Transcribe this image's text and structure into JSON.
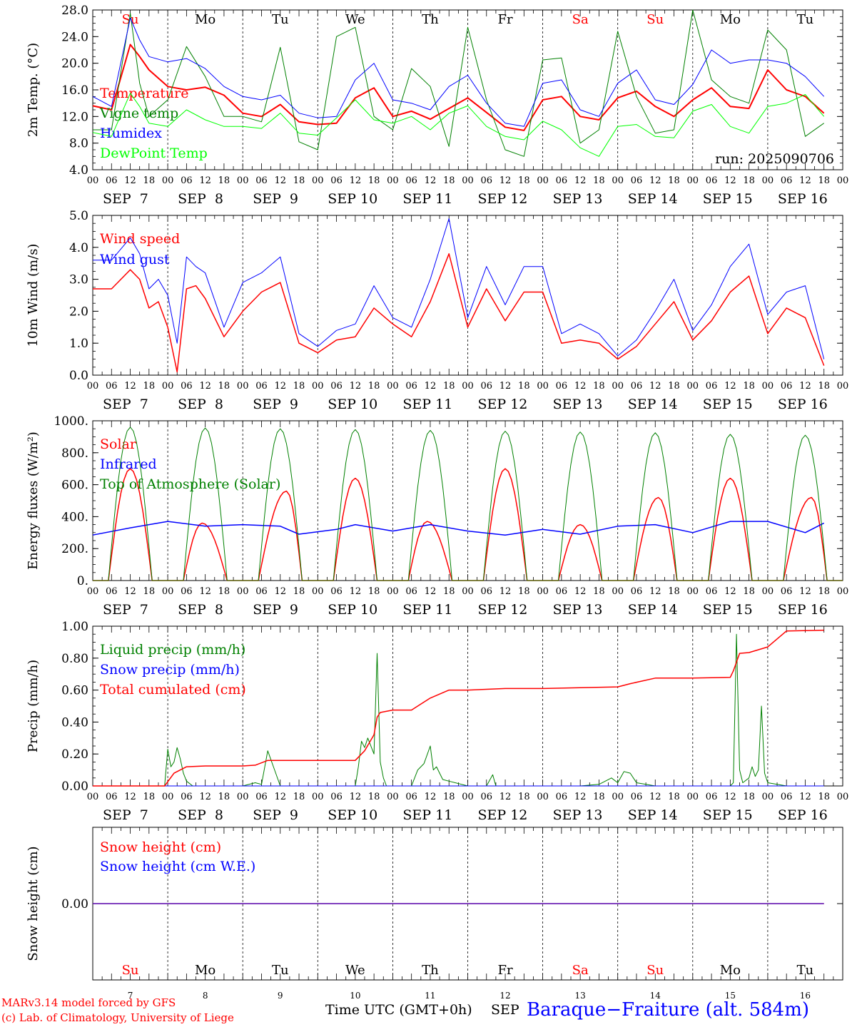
{
  "header": {},
  "x_axis": {
    "hour_labels": [
      "00",
      "06",
      "12",
      "18"
    ],
    "date_labels": [
      "SEP  7",
      "SEP  8",
      "SEP  9",
      "SEP 10",
      "SEP 11",
      "SEP 12",
      "SEP 13",
      "SEP 14",
      "SEP 15",
      "SEP 16"
    ],
    "day_names": [
      "Su",
      "Mo",
      "Tu",
      "We",
      "Th",
      "Fr",
      "Sa",
      "Su",
      "Mo",
      "Tu"
    ],
    "weekend_flags": [
      true,
      false,
      false,
      false,
      false,
      false,
      true,
      true,
      false,
      false
    ],
    "day_numbers": [
      "7",
      "8",
      "9",
      "10",
      "11",
      "12",
      "13",
      "14",
      "15",
      "16"
    ],
    "footer_axis_label": "Time UTC (GMT+0h)",
    "footer_month": "SEP"
  },
  "colors": {
    "red": "#ff0000",
    "darkgreen": "#008000",
    "blue": "#0000ff",
    "lightgreen": "#00ff00",
    "grid": "#000000"
  },
  "footer": {
    "model": "MARv3.14 model forced by GFS",
    "copyright": "(c) Lab. of Climatology, University of Liege",
    "station": "Baraque−Fraiture (alt. 584m)"
  },
  "chart_data": [
    {
      "type": "line",
      "ylabel": "2m Temp. (°C)",
      "ylim": [
        4.0,
        28.0
      ],
      "yticks": [
        4.0,
        8.0,
        12.0,
        16.0,
        20.0,
        24.0,
        28.0
      ],
      "ytick_labels": [
        "4.0",
        "8.0",
        "12.0",
        "16.0",
        "20.0",
        "24.0",
        "28.0"
      ],
      "annotation": "run: 2025090706",
      "x_unit": "hours since SEP 7 00 UTC",
      "series": [
        {
          "name": "Temperature",
          "color": "#ff0000",
          "width": 2,
          "x": [
            0,
            6,
            12,
            15,
            18,
            24,
            30,
            36,
            42,
            48,
            54,
            60,
            66,
            72,
            78,
            84,
            90,
            96,
            102,
            108,
            114,
            120,
            126,
            132,
            138,
            144,
            150,
            156,
            162,
            168,
            174,
            180,
            186,
            192,
            198,
            204,
            210,
            216,
            222,
            228,
            234
          ],
          "y": [
            13.6,
            13.0,
            22.8,
            21.0,
            19.0,
            16.5,
            16.0,
            16.4,
            15.2,
            12.5,
            12.0,
            13.8,
            11.2,
            10.8,
            11.0,
            14.8,
            16.3,
            12.0,
            12.8,
            11.6,
            13.2,
            14.8,
            12.6,
            10.4,
            9.9,
            14.5,
            15.0,
            12.0,
            11.5,
            14.8,
            15.8,
            13.5,
            12.0,
            14.5,
            16.3,
            13.5,
            13.2,
            19.0,
            16.0,
            15.0,
            12.5
          ]
        },
        {
          "name": "Vigne temp",
          "color": "#008000",
          "width": 1,
          "x": [
            0,
            6,
            12,
            15,
            18,
            24,
            30,
            36,
            42,
            48,
            54,
            60,
            66,
            72,
            78,
            84,
            90,
            96,
            102,
            108,
            114,
            120,
            126,
            132,
            138,
            144,
            150,
            156,
            162,
            168,
            174,
            180,
            186,
            192,
            198,
            204,
            210,
            216,
            222,
            228,
            234
          ],
          "y": [
            10.0,
            10.0,
            27.5,
            17.0,
            12.0,
            14.5,
            22.5,
            18.0,
            12.0,
            12.0,
            11.2,
            22.4,
            8.2,
            7.0,
            24.0,
            25.4,
            12.0,
            10.0,
            19.2,
            16.5,
            7.5,
            25.4,
            14.5,
            7.0,
            6.0,
            20.5,
            20.8,
            8.0,
            10.0,
            24.8,
            15.0,
            9.5,
            10.0,
            28.0,
            17.5,
            15.0,
            14.0,
            25.0,
            22.0,
            9.0,
            11.0
          ]
        },
        {
          "name": "Humidex",
          "color": "#0000ff",
          "width": 1,
          "x": [
            0,
            6,
            12,
            15,
            18,
            24,
            30,
            36,
            42,
            48,
            54,
            60,
            66,
            72,
            78,
            84,
            90,
            96,
            102,
            108,
            114,
            120,
            126,
            132,
            138,
            144,
            150,
            156,
            162,
            168,
            174,
            180,
            186,
            192,
            198,
            204,
            210,
            216,
            222,
            228,
            234
          ],
          "y": [
            15.0,
            13.5,
            26.8,
            23.5,
            21.0,
            20.2,
            20.7,
            19.2,
            16.5,
            15.0,
            14.5,
            15.2,
            12.5,
            11.8,
            12.0,
            17.5,
            20.0,
            14.5,
            14.0,
            13.0,
            16.5,
            18.2,
            14.0,
            11.0,
            10.5,
            17.0,
            17.5,
            13.0,
            12.0,
            17.0,
            19.0,
            14.5,
            13.8,
            16.8,
            22.0,
            20.0,
            20.5,
            20.5,
            20.0,
            18.0,
            15.0
          ]
        },
        {
          "name": "DewPoint Temp",
          "color": "#00ff00",
          "width": 1,
          "x": [
            0,
            6,
            12,
            15,
            18,
            24,
            30,
            36,
            42,
            48,
            54,
            60,
            66,
            72,
            78,
            84,
            90,
            96,
            102,
            108,
            114,
            120,
            126,
            132,
            138,
            144,
            150,
            156,
            162,
            168,
            174,
            180,
            186,
            192,
            198,
            204,
            210,
            216,
            222,
            228,
            234
          ],
          "y": [
            9.6,
            9.0,
            15.5,
            13.5,
            11.0,
            10.5,
            13.0,
            11.5,
            10.5,
            10.5,
            10.2,
            12.5,
            9.5,
            9.2,
            11.8,
            14.5,
            11.5,
            11.0,
            12.0,
            10.0,
            12.5,
            13.6,
            10.5,
            9.0,
            8.5,
            11.3,
            10.0,
            7.3,
            6.0,
            10.5,
            10.8,
            9.0,
            8.8,
            12.8,
            13.8,
            10.5,
            9.5,
            13.5,
            14.0,
            15.3,
            12.0
          ]
        }
      ]
    },
    {
      "type": "line",
      "ylabel": "10m Wind (m/s)",
      "ylim": [
        0.0,
        5.0
      ],
      "yticks": [
        0.0,
        1.0,
        2.0,
        3.0,
        4.0,
        5.0
      ],
      "ytick_labels": [
        "0.0",
        "1.0",
        "2.0",
        "3.0",
        "4.0",
        "5.0"
      ],
      "x_unit": "hours since SEP 7 00 UTC",
      "series": [
        {
          "name": "Wind speed",
          "color": "#ff0000",
          "width": 1.5,
          "x": [
            0,
            6,
            12,
            15,
            18,
            21,
            24,
            27,
            30,
            33,
            36,
            42,
            48,
            54,
            60,
            66,
            72,
            78,
            84,
            90,
            96,
            102,
            108,
            114,
            120,
            126,
            132,
            138,
            144,
            150,
            156,
            162,
            168,
            174,
            180,
            186,
            192,
            198,
            204,
            210,
            216,
            222,
            228,
            234
          ],
          "y": [
            2.7,
            2.7,
            3.3,
            3.0,
            2.1,
            2.3,
            1.5,
            0.1,
            2.7,
            2.8,
            2.4,
            1.2,
            2.0,
            2.6,
            2.9,
            1.0,
            0.7,
            1.1,
            1.2,
            2.1,
            1.6,
            1.2,
            2.3,
            3.8,
            1.5,
            2.7,
            1.7,
            2.6,
            2.6,
            1.0,
            1.1,
            1.0,
            0.5,
            0.9,
            1.6,
            2.3,
            1.1,
            1.7,
            2.6,
            3.1,
            1.3,
            2.1,
            1.8,
            0.3
          ]
        },
        {
          "name": "Wind gust",
          "color": "#0000ff",
          "width": 1,
          "x": [
            0,
            6,
            12,
            15,
            18,
            21,
            24,
            27,
            30,
            33,
            36,
            42,
            48,
            54,
            60,
            66,
            72,
            78,
            84,
            90,
            96,
            102,
            108,
            114,
            120,
            126,
            132,
            138,
            144,
            150,
            156,
            162,
            168,
            174,
            180,
            186,
            192,
            198,
            204,
            210,
            216,
            222,
            228,
            234
          ],
          "y": [
            3.6,
            3.6,
            4.3,
            3.8,
            2.7,
            3.0,
            2.5,
            1.0,
            3.7,
            3.4,
            3.2,
            1.5,
            2.9,
            3.2,
            3.7,
            1.3,
            0.9,
            1.4,
            1.6,
            2.8,
            1.8,
            1.5,
            3.0,
            4.9,
            1.8,
            3.4,
            2.2,
            3.4,
            3.4,
            1.3,
            1.6,
            1.3,
            0.6,
            1.1,
            2.0,
            3.0,
            1.4,
            2.2,
            3.4,
            4.1,
            1.9,
            2.6,
            2.8,
            0.5
          ]
        }
      ]
    },
    {
      "type": "line",
      "ylabel": "Energy fluxes (W/m²)",
      "ylim": [
        0,
        1000
      ],
      "yticks": [
        0,
        200,
        400,
        600,
        800,
        1000
      ],
      "ytick_labels": [
        "0.",
        "200.",
        "400.",
        "600.",
        "800.",
        "1000."
      ],
      "x_unit": "hours since SEP 7 00 UTC",
      "series": [
        {
          "name": "Solar",
          "color": "#ff0000",
          "width": 1.5,
          "peaks": [
            700,
            360,
            560,
            640,
            370,
            700,
            350,
            520,
            640,
            520
          ],
          "peak_hours": [
            12,
            11,
            14,
            12,
            11,
            12,
            12,
            13,
            12,
            14
          ]
        },
        {
          "name": "Infrared",
          "color": "#0000ff",
          "width": 1.5,
          "x": [
            0,
            12,
            24,
            36,
            48,
            60,
            66,
            78,
            84,
            96,
            108,
            120,
            132,
            144,
            156,
            168,
            180,
            192,
            204,
            216,
            228,
            234
          ],
          "y": [
            285,
            330,
            370,
            340,
            350,
            340,
            290,
            320,
            350,
            310,
            350,
            310,
            285,
            320,
            290,
            340,
            350,
            300,
            370,
            370,
            300,
            360
          ]
        },
        {
          "name": "Top of Atmosphere (Solar)",
          "color": "#008000",
          "width": 1,
          "peaks": [
            960,
            955,
            950,
            945,
            940,
            935,
            930,
            925,
            915,
            910
          ]
        }
      ]
    },
    {
      "type": "line",
      "ylabel": "Precip (mm/h)",
      "ylim": [
        0.0,
        1.0
      ],
      "yticks": [
        0.0,
        0.2,
        0.4,
        0.6,
        0.8,
        1.0
      ],
      "ytick_labels": [
        "0.00",
        "0.20",
        "0.40",
        "0.60",
        "0.80",
        "1.00"
      ],
      "x_unit": "hours since SEP 7 00 UTC",
      "series": [
        {
          "name": "Liquid precip (mm/h)",
          "color": "#008000",
          "width": 1,
          "x": [
            0,
            23,
            24,
            25,
            26,
            27,
            28,
            29,
            30,
            32,
            36,
            48,
            52,
            54,
            56,
            60,
            72,
            84,
            85,
            86,
            87,
            88,
            90,
            91,
            92,
            93,
            94,
            96,
            102,
            104,
            106,
            108,
            109,
            110,
            111,
            112,
            114,
            120,
            126,
            128,
            129,
            130,
            132,
            144,
            156,
            162,
            164,
            166,
            168,
            170,
            172,
            174,
            180,
            204,
            205,
            206,
            207,
            208,
            210,
            211,
            212,
            213,
            214,
            215,
            216,
            222,
            234
          ],
          "y": [
            0,
            0,
            0.23,
            0.12,
            0.15,
            0.24,
            0.17,
            0.08,
            0.03,
            0,
            0,
            0,
            0.02,
            0.01,
            0.22,
            0,
            0,
            0,
            0.12,
            0.28,
            0.24,
            0.3,
            0.2,
            0.83,
            0.15,
            0.05,
            0,
            0,
            0,
            0.1,
            0.14,
            0.25,
            0.1,
            0.12,
            0.08,
            0.04,
            0.03,
            0,
            0,
            0.07,
            0,
            0,
            0,
            0,
            0,
            0.01,
            0.03,
            0.05,
            0.02,
            0.09,
            0.08,
            0.02,
            0,
            0,
            0.02,
            0.95,
            0.1,
            0.02,
            0.05,
            0.12,
            0.06,
            0.1,
            0.5,
            0.08,
            0.02,
            0,
            0
          ]
        },
        {
          "name": "Snow precip (mm/h)",
          "color": "#0000ff",
          "width": 1,
          "x": [
            0,
            234
          ],
          "y": [
            0,
            0
          ]
        },
        {
          "name": "Total cumulated (cm)",
          "color": "#ff0000",
          "width": 1.5,
          "x": [
            0,
            23,
            26,
            30,
            36,
            48,
            52,
            56,
            72,
            84,
            87,
            90,
            91,
            92,
            96,
            102,
            104,
            108,
            114,
            120,
            132,
            144,
            156,
            168,
            170,
            172,
            180,
            192,
            204,
            205,
            207,
            210,
            216,
            222,
            234
          ],
          "y": [
            0,
            0,
            0.08,
            0.12,
            0.125,
            0.125,
            0.13,
            0.16,
            0.16,
            0.16,
            0.22,
            0.32,
            0.43,
            0.46,
            0.475,
            0.475,
            0.5,
            0.55,
            0.6,
            0.6,
            0.61,
            0.61,
            0.615,
            0.62,
            0.63,
            0.64,
            0.675,
            0.675,
            0.68,
            0.72,
            0.83,
            0.835,
            0.87,
            0.97,
            0.975
          ]
        }
      ]
    },
    {
      "type": "line",
      "ylabel": "Snow height (cm)",
      "ylim": [
        -1,
        1
      ],
      "yticks": [
        0
      ],
      "ytick_labels": [
        "0.00"
      ],
      "x_unit": "hours since SEP 7 00 UTC",
      "series": [
        {
          "name": "Snow height (cm)",
          "color": "#ff0000",
          "width": 1.5,
          "x": [
            0,
            234
          ],
          "y": [
            0,
            0
          ]
        },
        {
          "name": "Snow height (cm W.E.)",
          "color": "#0000ff",
          "width": 1,
          "x": [
            0,
            234
          ],
          "y": [
            0,
            0
          ]
        }
      ]
    }
  ]
}
